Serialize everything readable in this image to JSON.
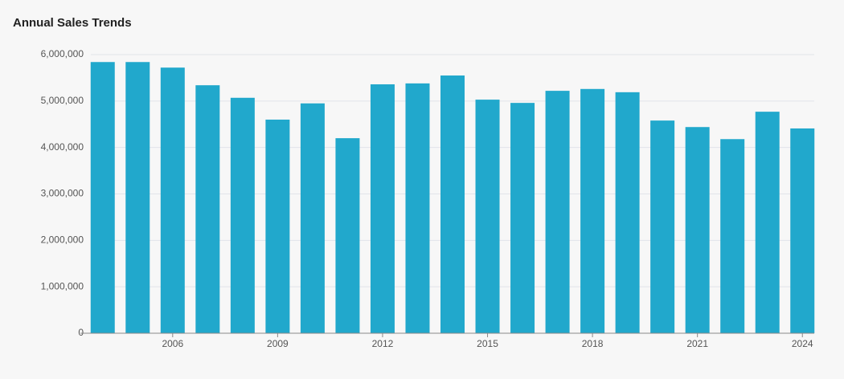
{
  "chart_data": {
    "type": "bar",
    "title": "Annual Sales Trends",
    "categories": [
      null,
      null,
      "2006",
      null,
      null,
      "2009",
      null,
      null,
      "2012",
      null,
      null,
      "2015",
      null,
      null,
      "2018",
      null,
      null,
      "2021",
      null,
      null,
      "2024"
    ],
    "values": [
      5840000,
      5840000,
      5720000,
      5340000,
      5070000,
      4600000,
      4950000,
      4200000,
      5360000,
      5380000,
      5550000,
      5030000,
      4960000,
      5220000,
      5260000,
      5190000,
      4580000,
      4440000,
      4180000,
      4770000,
      4410000
    ],
    "color": "#21a8cc",
    "ylim": [
      0,
      6000000
    ],
    "yticks": [
      0,
      {
        "value": 1000000,
        "label": "1,000,000"
      },
      {
        "value": 2000000,
        "label": "2,000,000"
      },
      {
        "value": 3000000,
        "label": "3,000,000"
      },
      {
        "value": 4000000,
        "label": "4,000,000"
      },
      {
        "value": 5000000,
        "label": "5,000,000"
      },
      {
        "value": 6000000,
        "label": "6,000,000"
      }
    ],
    "grid": true
  }
}
